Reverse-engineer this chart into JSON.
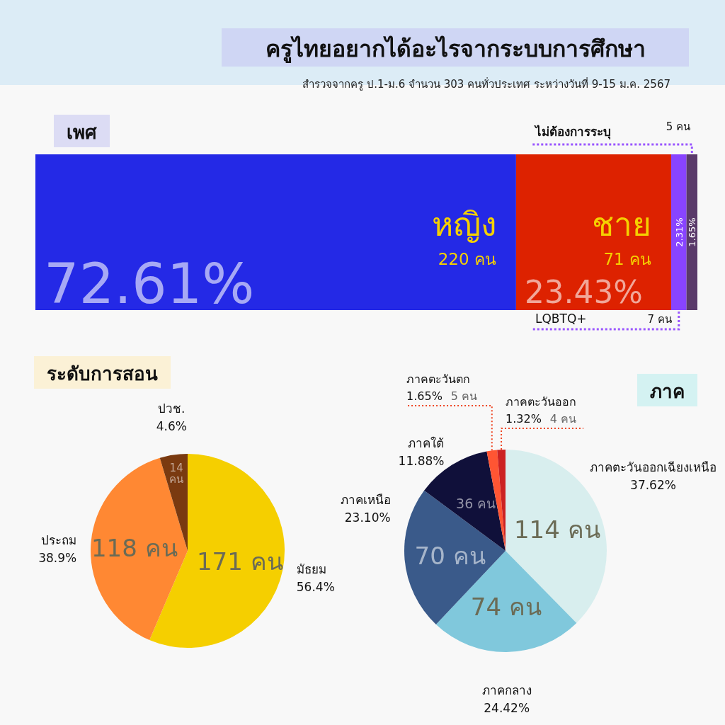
{
  "chart_data": [
    {
      "type": "other",
      "title": "ครูไทยอยากได้อะไรจากระบบการศึกษา",
      "subtitle": "สำรวจจากครู ป.1-ม.6 จำนวน 303 คนทั่วประเทศ ระหว่างวันที่ 9-15 ม.ค. 2567"
    },
    {
      "type": "bar",
      "title": "เพศ",
      "orientation": "horizontal",
      "stacked": true,
      "categories": [
        null
      ],
      "series": [
        {
          "name": "หญิง",
          "color": "#2429e6",
          "values": [
            72.61
          ],
          "value_labels": [
            "72.61%"
          ]
        },
        {
          "name": "ชาย",
          "color": "#dd2200",
          "values": [
            23.43
          ],
          "value_labels": [
            "23.43%"
          ]
        },
        {
          "name": "LQBTQ+",
          "color": "#8844ff",
          "values": [
            2.31
          ],
          "value_labels": [
            "2.31%"
          ]
        },
        {
          "name": "ไม่ต้องการระบุ",
          "color": "#5a3a6a",
          "values": [
            1.65
          ],
          "value_labels": [
            "1.65%"
          ]
        }
      ],
      "annotations": [
        "220 คน",
        "71 คน",
        "7 คน",
        "5 คน"
      ]
    },
    {
      "type": "pie",
      "title": "ระดับการสอน",
      "categories": [
        "มัธยม",
        "ประถม",
        "ปวช."
      ],
      "values": [
        171,
        118,
        14
      ],
      "colors": [
        "#f5cf00",
        "#ff8833",
        "#7a3a10"
      ],
      "value_labels": [
        "171 คน",
        "118 คน",
        "14 คน"
      ],
      "annotations": [
        "56.4%",
        "38.9%",
        "4.6%"
      ]
    },
    {
      "type": "pie",
      "title": "ภาค",
      "categories": [
        "ภาคตะวันออกเฉียงเหนือ",
        "ภาคกลาง",
        "ภาคเหนือ",
        "ภาคใต้",
        "ภาคตะวันตก",
        "ภาคตะวันออก"
      ],
      "values": [
        114,
        74,
        70,
        36,
        5,
        4
      ],
      "colors": [
        "#d8eeee",
        "#80c8dc",
        "#3a5a8a",
        "#10103a",
        "#ff5533",
        "#cc2222"
      ],
      "value_labels": [
        "114 คน",
        "74 คน",
        "70 คน",
        "36 คน",
        "5 คน",
        "4 คน"
      ],
      "annotations": [
        "37.62%",
        "24.42%",
        "23.10%",
        "11.88%",
        "1.65%",
        "1.32%"
      ]
    }
  ]
}
